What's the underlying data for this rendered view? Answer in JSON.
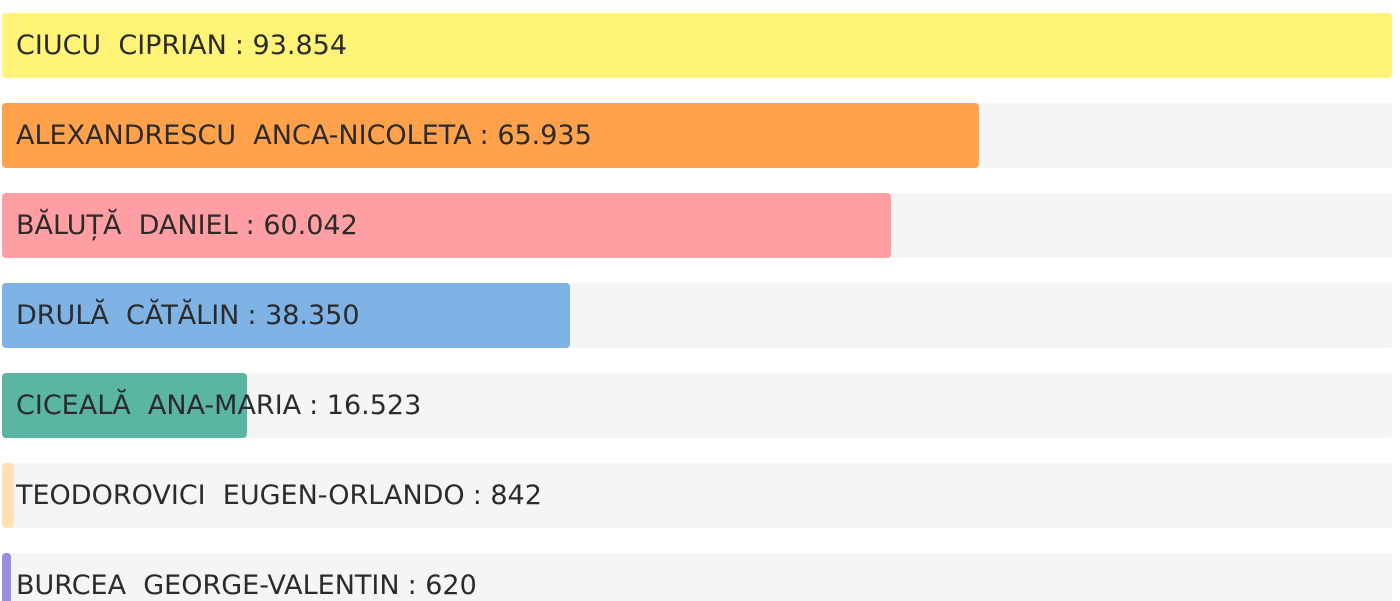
{
  "chart_data": {
    "type": "bar",
    "orientation": "horizontal",
    "categories": [
      "CIUCU  CIPRIAN",
      "ALEXANDRESCU  ANCA-NICOLETA",
      "BĂLUȚĂ  DANIEL",
      "DRULĂ  CĂTĂLIN",
      "CICEALĂ  ANA-MARIA",
      "TEODOROVICI  EUGEN-ORLANDO",
      "BURCEA  GEORGE-VALENTIN"
    ],
    "values": [
      93854,
      65935,
      60042,
      38350,
      16523,
      842,
      620
    ],
    "value_labels": [
      ": 93.854",
      ": 65.935",
      ": 60.042",
      ": 38.350",
      ": 16.523",
      ": 842",
      ": 620"
    ],
    "colors": [
      "#fff477",
      "#ffa24b",
      "#ff9ea3",
      "#7fb3e6",
      "#5bb5a3",
      "#ffe1b3",
      "#9a8de6"
    ],
    "xlim": [
      0,
      93854
    ]
  }
}
